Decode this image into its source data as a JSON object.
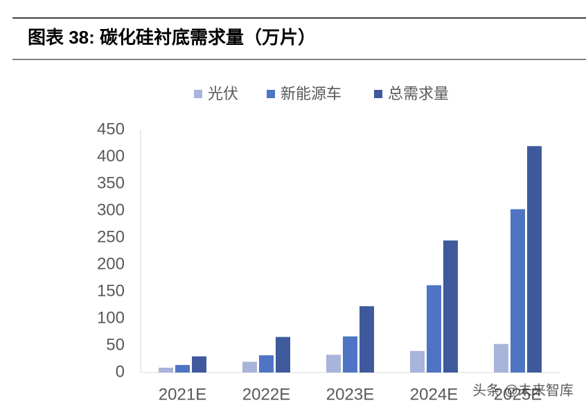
{
  "chart_data": {
    "type": "bar",
    "title": "图表 38:  碳化硅衬底需求量（万片）",
    "categories": [
      "2021E",
      "2022E",
      "2023E",
      "2024E",
      "2025E"
    ],
    "series": [
      {
        "name": "光伏",
        "color": "#a9b4db",
        "values": [
          9,
          20,
          33,
          40,
          53
        ]
      },
      {
        "name": "新能源车",
        "color": "#4f74c4",
        "values": [
          14,
          32,
          67,
          162,
          303
        ]
      },
      {
        "name": "总需求量",
        "color": "#3f5a9c",
        "values": [
          30,
          66,
          123,
          245,
          420
        ]
      }
    ],
    "ylim": [
      0,
      450
    ],
    "yticks": [
      0,
      50,
      100,
      150,
      200,
      250,
      300,
      350,
      400,
      450
    ],
    "grid": false,
    "legend": "top",
    "watermark": "头条 @未来智库"
  }
}
